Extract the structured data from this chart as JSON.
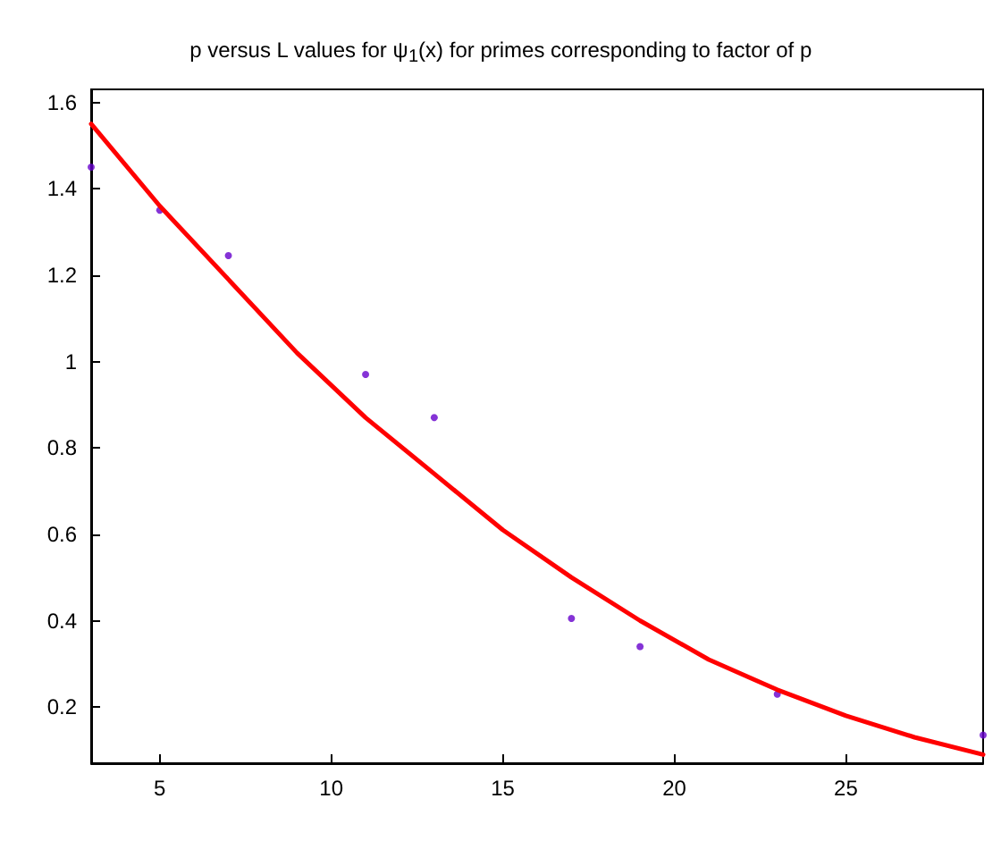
{
  "chart_data": {
    "type": "scatter",
    "title": "p versus L values for ψ$_{1}$(x) for primes corresponding to factor of p",
    "xlim": [
      3,
      29
    ],
    "xticks": [
      5,
      10,
      15,
      20,
      25
    ],
    "ylim": [
      0.07,
      1.63
    ],
    "yticks": [
      0.2,
      0.4,
      0.6,
      0.8,
      1,
      1.2,
      1.4,
      1.6
    ],
    "grid": false,
    "series": [
      {
        "color": "#6600cc",
        "marker": "circle",
        "x": [
          3,
          5,
          7,
          11,
          13,
          17,
          19,
          23,
          29
        ],
        "values": [
          1.45,
          1.35,
          1.245,
          0.97,
          0.87,
          0.405,
          0.34,
          0.23,
          0.135
        ]
      },
      {
        "type": "line",
        "color": "#ff0000",
        "marker": "none",
        "line_style": "solid",
        "x": [
          3,
          5,
          7,
          9,
          11,
          13,
          15,
          17,
          19,
          21,
          23,
          25,
          27,
          29
        ],
        "values": [
          1.55,
          1.36,
          1.19,
          1.02,
          0.87,
          0.74,
          0.61,
          0.5,
          0.4,
          0.31,
          0.24,
          0.18,
          0.13,
          0.09
        ]
      }
    ]
  }
}
